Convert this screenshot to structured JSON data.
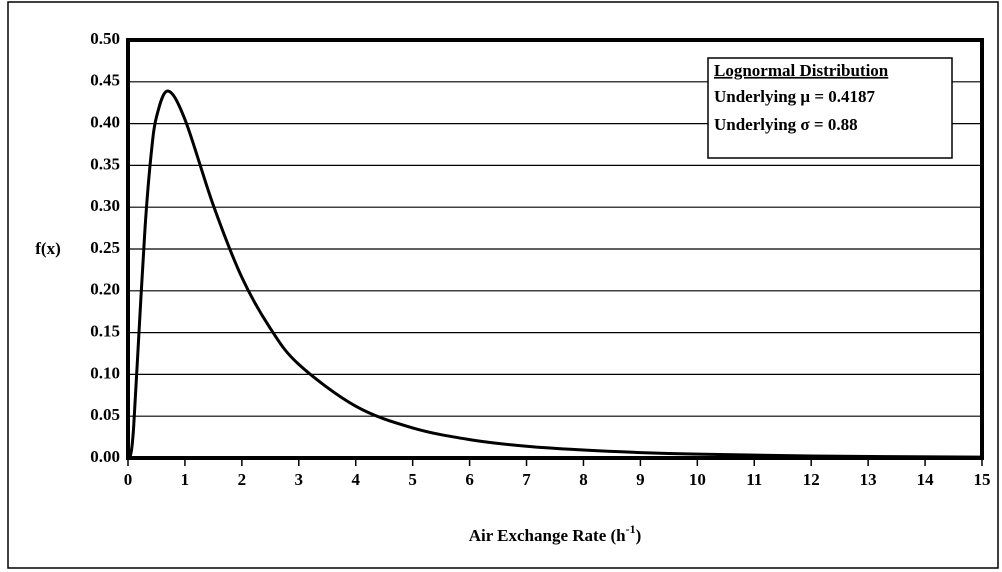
{
  "chart_data": {
    "type": "line",
    "ylabel": "f(x)",
    "xlabel": [
      "Air Exchange Rate (h",
      "-1",
      ")"
    ],
    "legend_box": [
      "Lognormal Distribution",
      "Underlying μ = 0.4187",
      "Underlying σ = 0.88"
    ],
    "x": [
      0,
      0.05,
      0.1,
      0.2,
      0.3,
      0.4,
      0.5,
      0.7,
      1,
      1.5,
      2,
      2.5,
      3,
      4,
      5,
      6,
      7,
      8,
      9,
      10,
      12,
      15
    ],
    "series": [
      {
        "color": "#000000",
        "values": [
          0,
          0.005,
          0.038,
          0.159,
          0.276,
          0.359,
          0.408,
          0.439,
          0.405,
          0.302,
          0.216,
          0.155,
          0.112,
          0.062,
          0.036,
          0.022,
          0.014,
          0.0095,
          0.0065,
          0.0046,
          0.0024,
          0.001
        ]
      }
    ],
    "xlim": [
      0,
      15
    ],
    "xticks": [
      0,
      1,
      2,
      3,
      4,
      5,
      6,
      7,
      8,
      9,
      10,
      11,
      12,
      13,
      14,
      15
    ],
    "ylim": [
      0,
      0.5
    ],
    "yticks": [
      {
        "value": 0,
        "label": "0.00"
      },
      {
        "value": 0.05,
        "label": "0.05"
      },
      {
        "value": 0.1,
        "label": "0.10"
      },
      {
        "value": 0.15,
        "label": "0.15"
      },
      {
        "value": 0.2,
        "label": "0.20"
      },
      {
        "value": 0.25,
        "label": "0.25"
      },
      {
        "value": 0.3,
        "label": "0.30"
      },
      {
        "value": 0.35,
        "label": "0.35"
      },
      {
        "value": 0.4,
        "label": "0.40"
      },
      {
        "value": 0.45,
        "label": "0.45"
      },
      {
        "value": 0.5,
        "label": "0.50"
      }
    ],
    "grid": true
  }
}
